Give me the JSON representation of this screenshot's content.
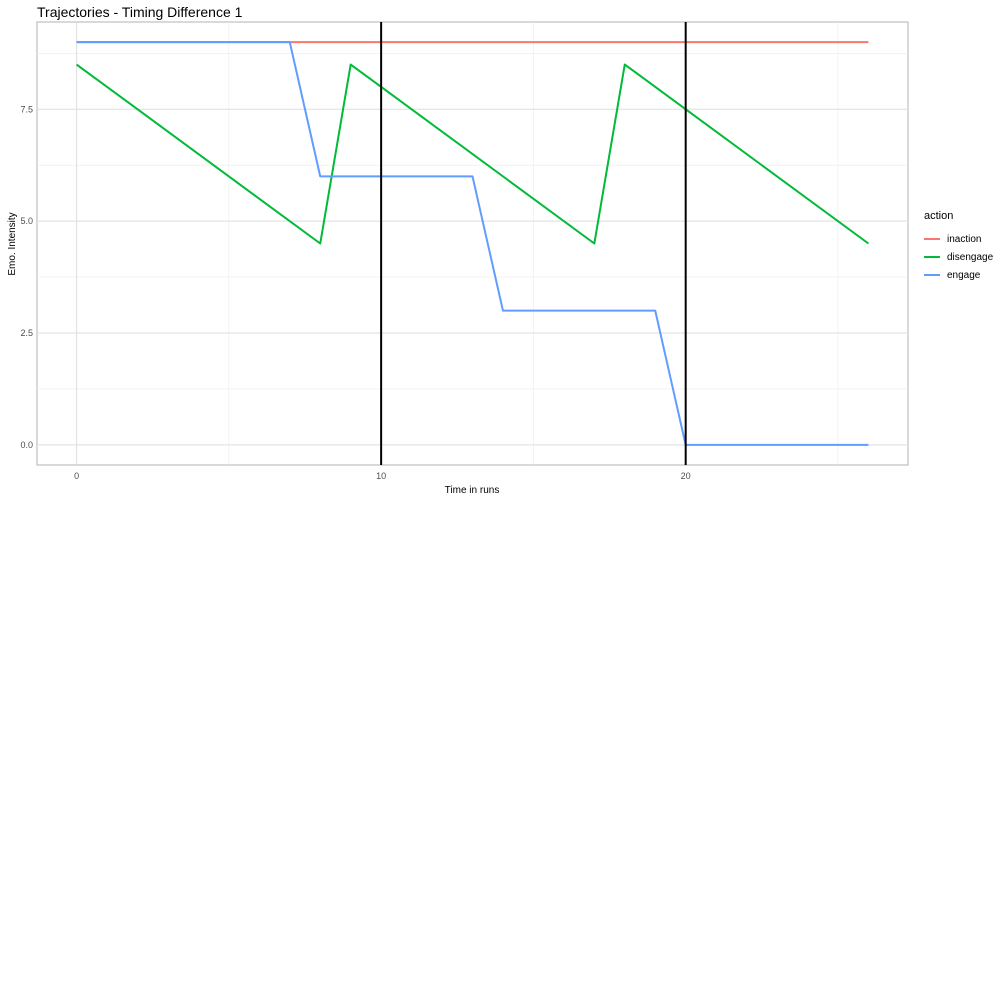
{
  "chart_data": {
    "type": "line",
    "title": "Trajectories - Timing Difference 1",
    "xlabel": "Time in runs",
    "ylabel": "Emo. Intensity",
    "xlim": [
      -1.3,
      27.3
    ],
    "ylim": [
      -0.45,
      9.45
    ],
    "x_ticks": [
      0,
      10,
      20
    ],
    "y_ticks": [
      0.0,
      2.5,
      5.0,
      7.5
    ],
    "x_tick_labels": [
      "0",
      "10",
      "20"
    ],
    "y_tick_labels": [
      "0.0",
      "2.5",
      "5.0",
      "7.5"
    ],
    "grid": true,
    "legend_title": "action",
    "legend_position": "right",
    "vlines": [
      10,
      20
    ],
    "series": [
      {
        "name": "inaction",
        "color": "#F8766D",
        "points": [
          [
            0,
            9
          ],
          [
            26,
            9
          ]
        ]
      },
      {
        "name": "disengage",
        "color": "#00BA38",
        "points": [
          [
            0,
            8.5
          ],
          [
            8,
            4.5
          ],
          [
            9,
            8.5
          ],
          [
            17,
            4.5
          ],
          [
            18,
            8.5
          ],
          [
            26,
            4.5
          ]
        ]
      },
      {
        "name": "engage",
        "color": "#619CFF",
        "points": [
          [
            0,
            9
          ],
          [
            7,
            9
          ],
          [
            8,
            6
          ],
          [
            13,
            6
          ],
          [
            14,
            3
          ],
          [
            19,
            3
          ],
          [
            20,
            0
          ],
          [
            26,
            0
          ]
        ]
      }
    ]
  }
}
